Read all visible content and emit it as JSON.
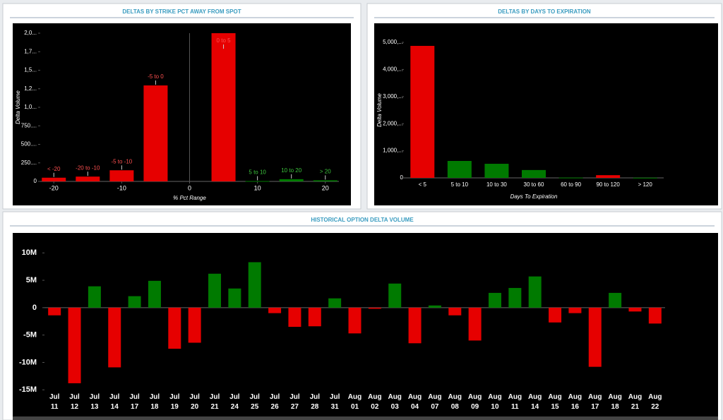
{
  "chart_data": [
    {
      "type": "bar",
      "title": "DELTAS BY STRIKE PCT AWAY FROM SPOT",
      "x_label": "% Pct Range",
      "y_label": "Delta Volume",
      "categories": [
        "< -20",
        "-20 to -10",
        "-5 to -10",
        "-5 to 0",
        "0 to 5",
        "5 to 10",
        "10 to 20",
        "> 20"
      ],
      "x": [
        -20,
        -15,
        -10,
        -5,
        5,
        10,
        15,
        20
      ],
      "values": [
        50,
        65,
        150,
        1295,
        2000,
        5,
        30,
        15
      ],
      "colors": [
        "#e60000",
        "#e60000",
        "#e60000",
        "#e60000",
        "#e60000",
        "#007a00",
        "#007a00",
        "#007a00"
      ],
      "xlim": [
        -22,
        22
      ],
      "xticks": [
        -20,
        -10,
        0,
        10,
        20
      ],
      "ylim": [
        0,
        2000
      ],
      "yticks": [
        0,
        {
          "value": 250,
          "label": "250...."
        },
        {
          "value": 500,
          "label": "500...."
        },
        {
          "value": 750,
          "label": "750...."
        },
        {
          "value": 1000,
          "label": "1,0..."
        },
        {
          "value": 1250,
          "label": "1,2..."
        },
        {
          "value": 1500,
          "label": "1,5..."
        },
        {
          "value": 1750,
          "label": "1,7..."
        },
        {
          "value": 2000,
          "label": "2,0..."
        }
      ]
    },
    {
      "type": "bar",
      "title": "DELTAS BY DAYS TO EXPIRATION",
      "x_label": "Days To Expiration",
      "y_label": "Delta Volume",
      "categories": [
        "< 5",
        "5 to 10",
        "10 to 30",
        "30 to 60",
        "60 to 90",
        "90 to 120",
        "> 120"
      ],
      "values": [
        4870,
        625,
        520,
        290,
        10,
        100,
        5
      ],
      "colors": [
        "#e60000",
        "#007a00",
        "#007a00",
        "#007a00",
        "#007a00",
        "#e60000",
        "#007a00"
      ],
      "ylim": [
        0,
        5000
      ],
      "yticks": [
        0,
        {
          "value": 1000,
          "label": "1,000,..."
        },
        {
          "value": 2000,
          "label": "2,000,..."
        },
        {
          "value": 3000,
          "label": "3,000,..."
        },
        {
          "value": 4000,
          "label": "4,000,..."
        },
        {
          "value": 5000,
          "label": "5,000,..."
        }
      ]
    },
    {
      "type": "bar",
      "title": "HISTORICAL OPTION DELTA VOLUME",
      "categories": [
        "Jul 11",
        "Jul 12",
        "Jul 13",
        "Jul 14",
        "Jul 17",
        "Jul 18",
        "Jul 19",
        "Jul 20",
        "Jul 21",
        "Jul 24",
        "Jul 25",
        "Jul 26",
        "Jul 27",
        "Jul 28",
        "Jul 31",
        "Aug 01",
        "Aug 02",
        "Aug 03",
        "Aug 04",
        "Aug 07",
        "Aug 08",
        "Aug 09",
        "Aug 10",
        "Aug 11",
        "Aug 14",
        "Aug 15",
        "Aug 16",
        "Aug 17",
        "Aug 18",
        "Aug 21",
        "Aug 22"
      ],
      "values": [
        -1400000,
        -13800000,
        3900000,
        -10900000,
        2100000,
        4900000,
        -7500000,
        -6400000,
        6200000,
        3500000,
        8300000,
        -1000000,
        -3500000,
        -3400000,
        1700000,
        -4700000,
        -200000,
        4400000,
        -6500000,
        400000,
        -1400000,
        -6000000,
        2700000,
        3600000,
        5700000,
        -2700000,
        -1000000,
        -10800000,
        2700000,
        -700000,
        -2900000
      ],
      "positive_color": "#007a00",
      "negative_color": "#e60000",
      "ylim": [
        -16000000,
        13000000
      ],
      "yticks": [
        {
          "value": 10000000,
          "label": "10M"
        },
        {
          "value": 5000000,
          "label": "5M"
        },
        0,
        {
          "value": -5000000,
          "label": "-5M"
        },
        {
          "value": -10000000,
          "label": "-10M"
        },
        {
          "value": -15000000,
          "label": "-15M"
        }
      ]
    }
  ]
}
